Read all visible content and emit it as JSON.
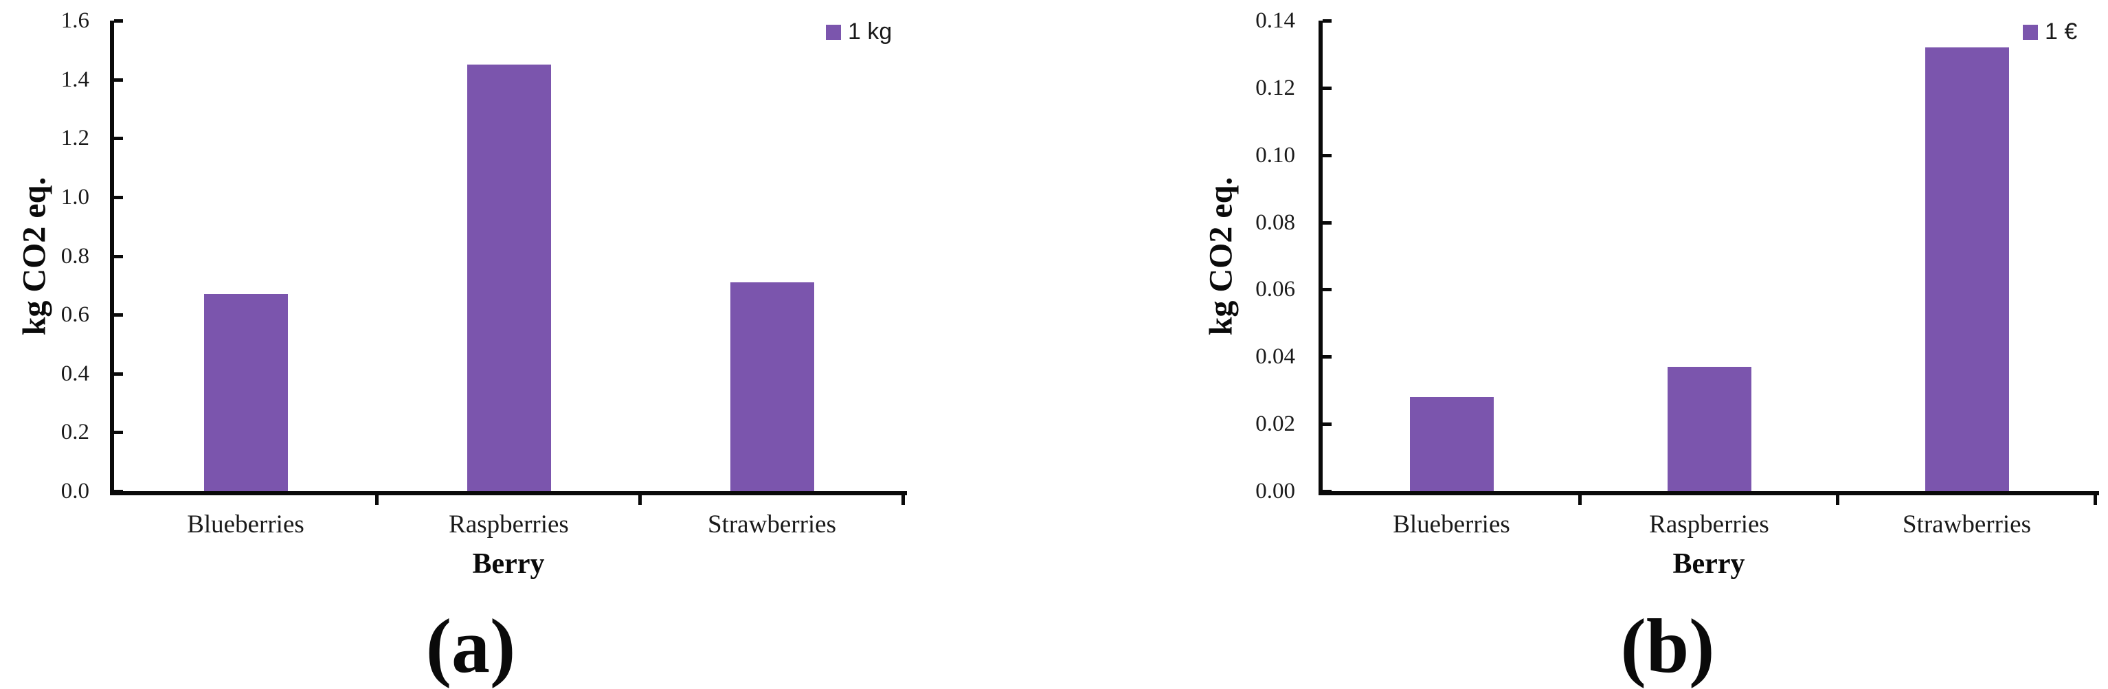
{
  "colors": {
    "bar": "#7B55AD",
    "axis": "#0a0a0a",
    "text": "#1a1a1a"
  },
  "chart_data": [
    {
      "id": "a",
      "type": "bar",
      "caption": "(a)",
      "xlabel": "Berry",
      "ylabel": "kg CO2 eq.",
      "legend": [
        "1 kg"
      ],
      "legend_position": "top-right",
      "grid": false,
      "categories": [
        "Blueberries",
        "Raspberries",
        "Strawberries"
      ],
      "values": [
        0.67,
        1.45,
        0.71
      ],
      "ylim": [
        0,
        1.6
      ],
      "ytick_step": 0.2,
      "yticks": [
        "1.6",
        "1.4",
        "1.2",
        "1.0",
        "0.8",
        "0.6",
        "0.4",
        "0.2",
        "0.0"
      ]
    },
    {
      "id": "b",
      "type": "bar",
      "caption": "(b)",
      "xlabel": "Berry",
      "ylabel": "kg CO2 eq.",
      "legend": [
        "1 €"
      ],
      "legend_position": "top-right",
      "grid": false,
      "categories": [
        "Blueberries",
        "Raspberries",
        "Strawberries"
      ],
      "values": [
        0.028,
        0.037,
        0.132
      ],
      "ylim": [
        0,
        0.14
      ],
      "ytick_step": 0.02,
      "yticks": [
        "0.14",
        "0.12",
        "0.10",
        "0.08",
        "0.06",
        "0.04",
        "0.02",
        "0.00"
      ]
    }
  ]
}
